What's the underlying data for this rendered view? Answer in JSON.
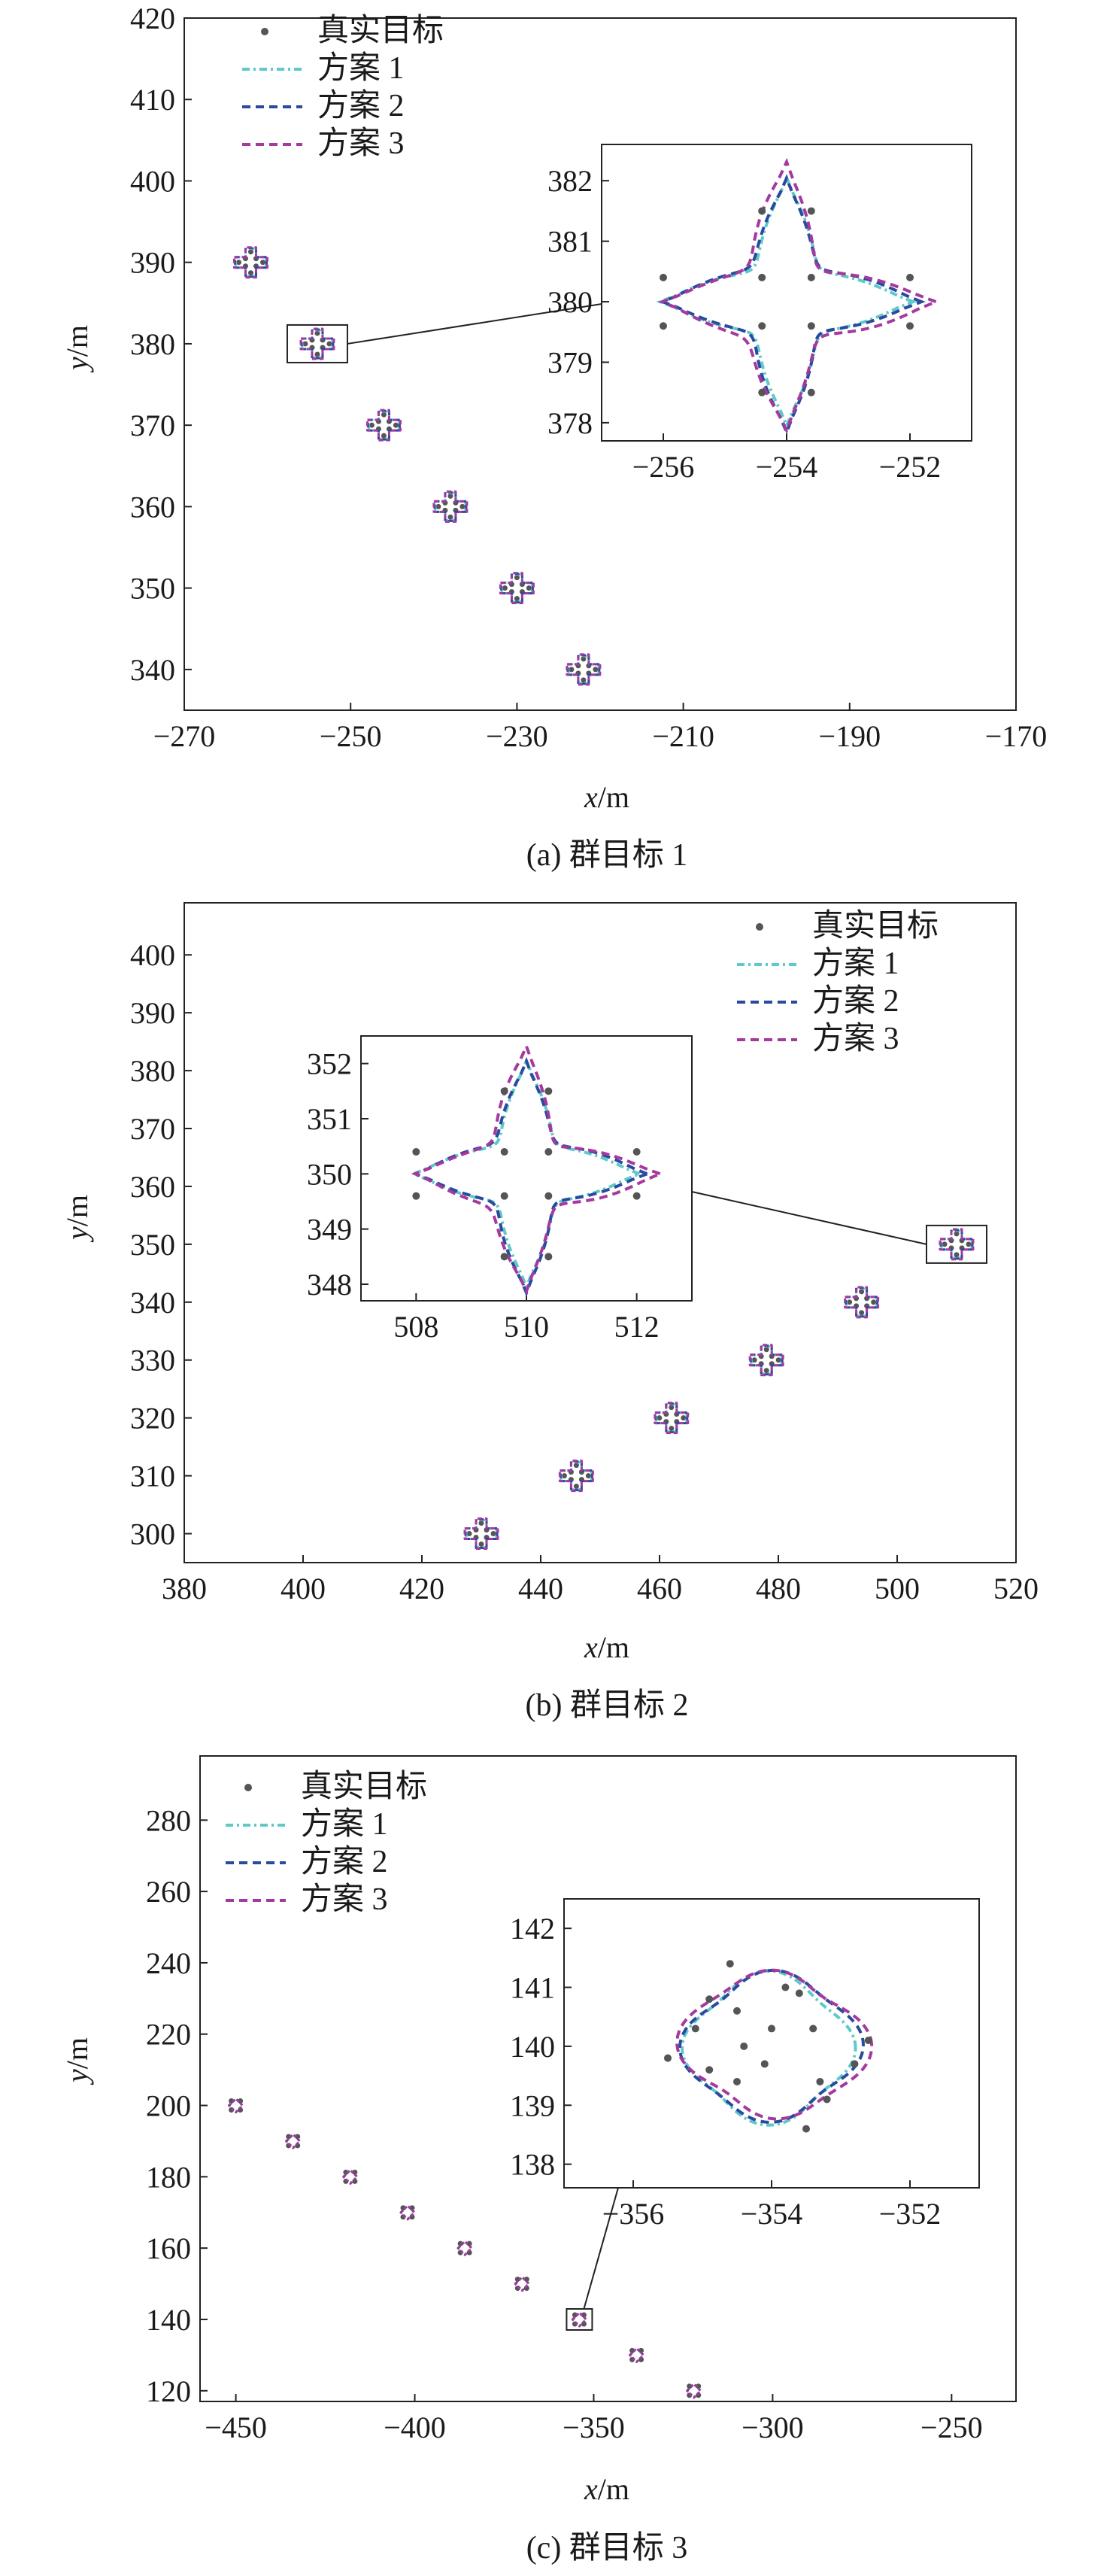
{
  "figure": {
    "panels": [
      {
        "caption": "(a) 群目标 1",
        "xlabel_var": "x",
        "xlabel_unit": "/m",
        "ylabel_var": "y",
        "ylabel_unit": "/m"
      },
      {
        "caption": "(b) 群目标 2",
        "xlabel_var": "x",
        "xlabel_unit": "/m",
        "ylabel_var": "y",
        "ylabel_unit": "/m"
      },
      {
        "caption": "(c) 群目标 3",
        "xlabel_var": "x",
        "xlabel_unit": "/m",
        "ylabel_var": "y",
        "ylabel_unit": "/m"
      }
    ]
  },
  "legend": {
    "entries": [
      {
        "label": "真实目标",
        "style": "dots",
        "color": "#555555"
      },
      {
        "label": "方案 1",
        "style": "dashdot",
        "color": "#5ec9c9"
      },
      {
        "label": "方案 2",
        "style": "dashed",
        "color": "#2a4a9e"
      },
      {
        "label": "方案 3",
        "style": "dashed",
        "color": "#a5399e"
      }
    ]
  },
  "chart_data": [
    {
      "type": "scatter",
      "title": "",
      "xlabel": "x/m",
      "ylabel": "y/m",
      "xlim": [
        -270,
        -170
      ],
      "ylim": [
        335,
        420
      ],
      "xticks": [
        -270,
        -250,
        -230,
        -210,
        -190,
        -170
      ],
      "yticks": [
        340,
        350,
        360,
        370,
        380,
        390,
        400,
        410,
        420
      ],
      "legend_position": "top-left",
      "group_centers": [
        [
          -262,
          390
        ],
        [
          -254,
          380
        ],
        [
          -246,
          370
        ],
        [
          -238,
          360
        ],
        [
          -230,
          350
        ],
        [
          -222,
          340
        ]
      ],
      "series": [
        {
          "name": "真实目标",
          "type": "points"
        },
        {
          "name": "方案 1",
          "type": "contour"
        },
        {
          "name": "方案 2",
          "type": "contour"
        },
        {
          "name": "方案 3",
          "type": "contour"
        }
      ],
      "inset": {
        "center": [
          -254,
          380
        ],
        "xlim": [
          -257,
          -251
        ],
        "ylim": [
          377.7,
          382.6
        ],
        "xticks": [
          -256,
          -254,
          -252
        ],
        "yticks": [
          378,
          379,
          380,
          381,
          382
        ],
        "points": [
          [
            -256,
            380.4
          ],
          [
            -256,
            379.6
          ],
          [
            -252,
            380.4
          ],
          [
            -252,
            379.6
          ],
          [
            -254.4,
            381.5
          ],
          [
            -253.6,
            381.5
          ],
          [
            -254.4,
            378.5
          ],
          [
            -253.6,
            378.5
          ],
          [
            -254.4,
            380.4
          ],
          [
            -253.6,
            380.4
          ],
          [
            -254.4,
            379.6
          ],
          [
            -253.6,
            379.6
          ]
        ]
      }
    },
    {
      "type": "scatter",
      "title": "",
      "xlabel": "x/m",
      "ylabel": "y/m",
      "xlim": [
        380,
        520
      ],
      "ylim": [
        295,
        409
      ],
      "xticks": [
        380,
        400,
        420,
        440,
        460,
        480,
        500,
        520
      ],
      "yticks": [
        300,
        310,
        320,
        330,
        340,
        350,
        360,
        370,
        380,
        390,
        400
      ],
      "legend_position": "top-right",
      "group_centers": [
        [
          430,
          300
        ],
        [
          446,
          310
        ],
        [
          462,
          320
        ],
        [
          478,
          330
        ],
        [
          494,
          340
        ],
        [
          510,
          350
        ]
      ],
      "series": [
        {
          "name": "真实目标",
          "type": "points"
        },
        {
          "name": "方案 1",
          "type": "contour"
        },
        {
          "name": "方案 2",
          "type": "contour"
        },
        {
          "name": "方案 3",
          "type": "contour"
        }
      ],
      "inset": {
        "center": [
          510,
          350
        ],
        "xlim": [
          507,
          513
        ],
        "ylim": [
          347.7,
          352.5
        ],
        "xticks": [
          508,
          510,
          512
        ],
        "yticks": [
          348,
          349,
          350,
          351,
          352
        ],
        "points": [
          [
            508,
            350.4
          ],
          [
            508,
            349.6
          ],
          [
            512,
            350.4
          ],
          [
            512,
            349.6
          ],
          [
            509.6,
            351.5
          ],
          [
            510.4,
            351.5
          ],
          [
            509.6,
            348.5
          ],
          [
            510.4,
            348.5
          ],
          [
            509.6,
            350.4
          ],
          [
            510.4,
            350.4
          ],
          [
            509.6,
            349.6
          ],
          [
            510.4,
            349.6
          ]
        ]
      }
    },
    {
      "type": "scatter",
      "title": "",
      "xlabel": "x/m",
      "ylabel": "y/m",
      "xlim": [
        -460,
        -232
      ],
      "ylim": [
        117,
        298
      ],
      "xticks": [
        -450,
        -400,
        -350,
        -300,
        -250
      ],
      "yticks": [
        120,
        140,
        160,
        180,
        200,
        220,
        240,
        260,
        280
      ],
      "legend_position": "top-left",
      "group_centers": [
        [
          -450,
          200
        ],
        [
          -434,
          190
        ],
        [
          -418,
          180
        ],
        [
          -402,
          170
        ],
        [
          -386,
          160
        ],
        [
          -370,
          150
        ],
        [
          -354,
          140
        ],
        [
          -338,
          130
        ],
        [
          -322,
          120
        ]
      ],
      "series": [
        {
          "name": "真实目标",
          "type": "points"
        },
        {
          "name": "方案 1",
          "type": "contour"
        },
        {
          "name": "方案 2",
          "type": "contour"
        },
        {
          "name": "方案 3",
          "type": "contour"
        }
      ],
      "inset": {
        "center": [
          -354,
          140
        ],
        "xlim": [
          -357,
          -351
        ],
        "ylim": [
          137.6,
          142.5
        ],
        "xticks": [
          -356,
          -354,
          -352
        ],
        "yticks": [
          138,
          139,
          140,
          141,
          142
        ],
        "points": [
          [
            -354.6,
            141.4
          ],
          [
            -354.5,
            140.6
          ],
          [
            -354.9,
            140.8
          ],
          [
            -355.5,
            139.8
          ],
          [
            -355.1,
            140.3
          ],
          [
            -354.4,
            140.0
          ],
          [
            -354.0,
            140.3
          ],
          [
            -353.4,
            140.3
          ],
          [
            -352.6,
            140.1
          ],
          [
            -353.6,
            140.9
          ],
          [
            -353.8,
            141.0
          ],
          [
            -354.9,
            139.6
          ],
          [
            -354.1,
            139.7
          ],
          [
            -353.2,
            139.1
          ],
          [
            -353.3,
            139.4
          ],
          [
            -353.5,
            138.6
          ],
          [
            -352.8,
            139.7
          ],
          [
            -354.5,
            139.4
          ]
        ]
      }
    }
  ]
}
